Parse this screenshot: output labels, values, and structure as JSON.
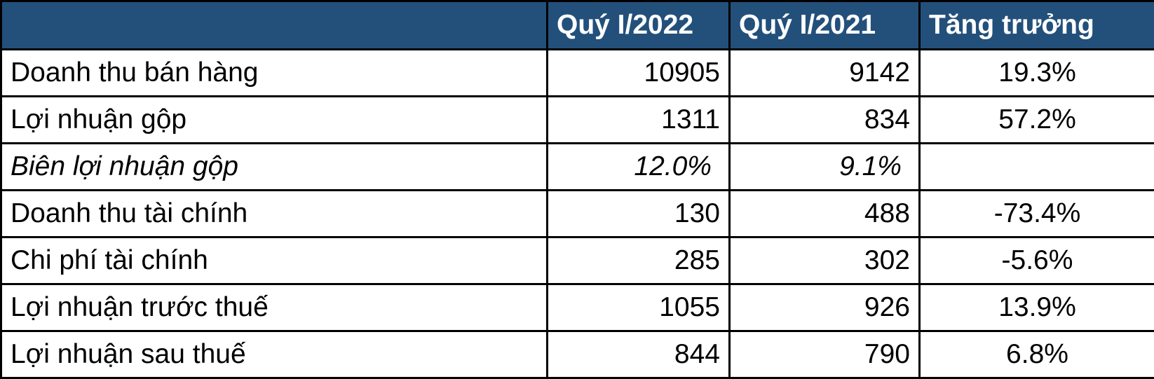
{
  "table": {
    "header": [
      "Quý I/2022",
      "Quý I/2021",
      "Tăng trưởng"
    ],
    "rows": [
      [
        "Doanh thu bán hàng",
        "10905",
        "9142",
        "19.3%"
      ],
      [
        "Lợi nhuận gộp",
        "1311",
        "834",
        "57.2%"
      ],
      [
        "Biên lợi nhuận gộp",
        "12.0%",
        "9.1%"
      ],
      [
        "Doanh thu tài chính",
        "130",
        "488",
        "-73.4%"
      ],
      [
        "Chi phí tài chính",
        "285",
        "302",
        "-5.6%"
      ],
      [
        "Lợi nhuận trước thuế",
        "1055",
        "926",
        "13.9%"
      ],
      [
        "Lợi nhuận sau thuế",
        "844",
        "790",
        "6.8%"
      ]
    ]
  }
}
